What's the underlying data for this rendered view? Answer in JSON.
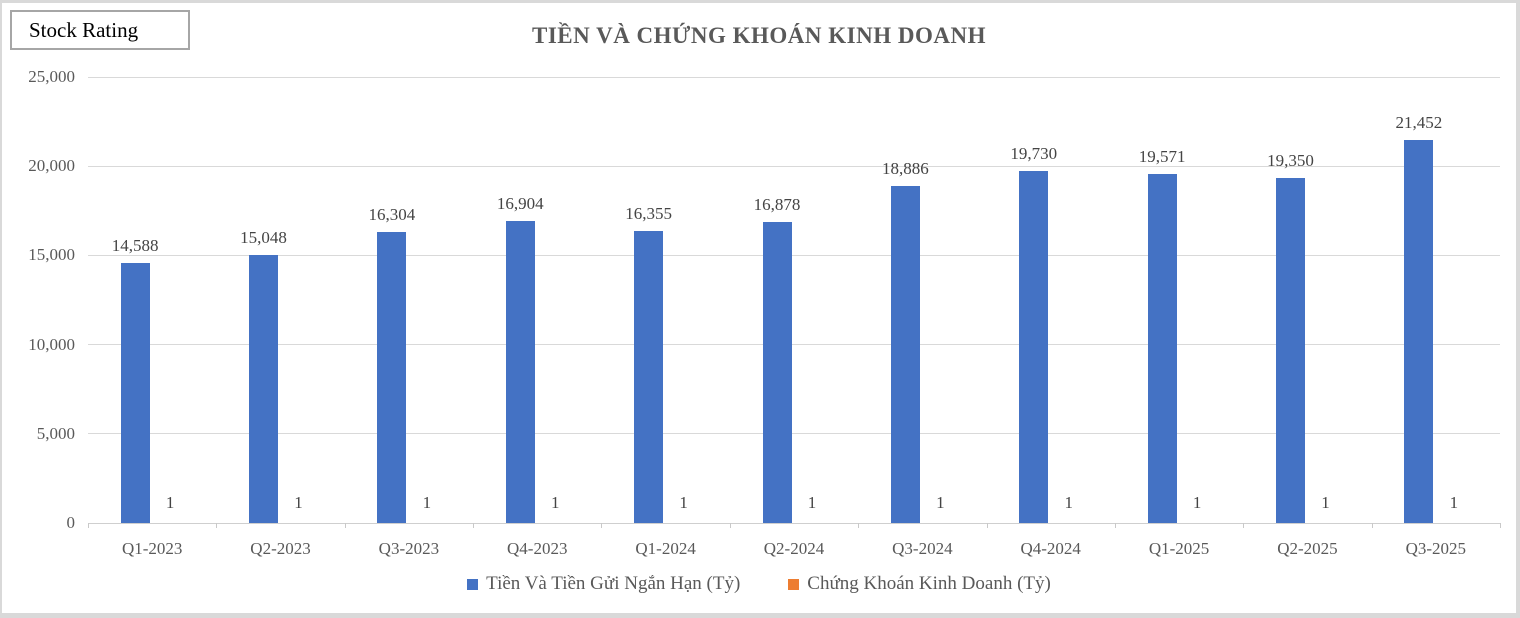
{
  "window": {
    "badge": "Stock Rating"
  },
  "chart_data": {
    "type": "bar",
    "title": "TIỀN VÀ CHỨNG KHOÁN KINH DOANH",
    "categories": [
      "Q1-2023",
      "Q2-2023",
      "Q3-2023",
      "Q4-2023",
      "Q1-2024",
      "Q2-2024",
      "Q3-2024",
      "Q4-2024",
      "Q1-2025",
      "Q2-2025",
      "Q3-2025"
    ],
    "series": [
      {
        "name": "Tiền Và Tiền Gửi Ngắn Hạn (Tỷ)",
        "color": "#4472C4",
        "values": [
          14588,
          15048,
          16304,
          16904,
          16355,
          16878,
          18886,
          19730,
          19571,
          19350,
          21452
        ]
      },
      {
        "name": "Chứng Khoán Kinh Doanh (Tỷ)",
        "color": "#ED7D31",
        "values": [
          1,
          1,
          1,
          1,
          1,
          1,
          1,
          1,
          1,
          1,
          1
        ]
      }
    ],
    "xlabel": "",
    "ylabel": "",
    "ylim": [
      0,
      25000
    ],
    "ytick_interval": 5000,
    "ytick_labels": [
      "0",
      "5,000",
      "10,000",
      "15,000",
      "20,000",
      "25,000"
    ],
    "grid": true,
    "data_labels": true,
    "legend_position": "bottom"
  },
  "colors": {
    "axis_text": "#595959",
    "data_label_text": "#444444",
    "gridline": "#d9d9d9",
    "frame_border": "#d9d9d9",
    "badge_border": "#a6a6a6",
    "title_text": "#595959"
  }
}
